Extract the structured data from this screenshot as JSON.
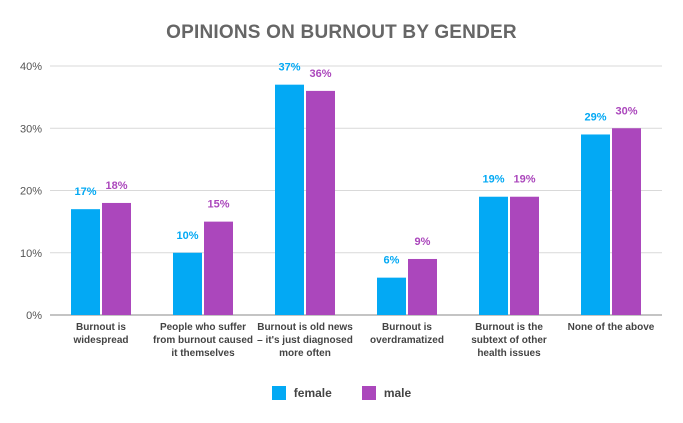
{
  "chart_data": {
    "type": "bar",
    "title": "OPINIONS ON BURNOUT BY GENDER",
    "categories": [
      "Burnout is widespread",
      "People who suffer from burnout caused it themselves",
      "Burnout is old news – it's just diagnosed more often",
      "Burnout is overdramatized",
      "Burnout is the subtext of other health issues",
      "None of the above"
    ],
    "series": [
      {
        "name": "female",
        "color": "#03A9F4",
        "values": [
          17,
          10,
          37,
          6,
          19,
          29
        ]
      },
      {
        "name": "male",
        "color": "#AB47BC",
        "values": [
          18,
          15,
          36,
          9,
          19,
          30
        ]
      }
    ],
    "ylim": [
      0,
      40
    ],
    "yticks": [
      "0%",
      "10%",
      "20%",
      "30%",
      "40%"
    ],
    "grid": true,
    "legend": "bottom-center"
  }
}
